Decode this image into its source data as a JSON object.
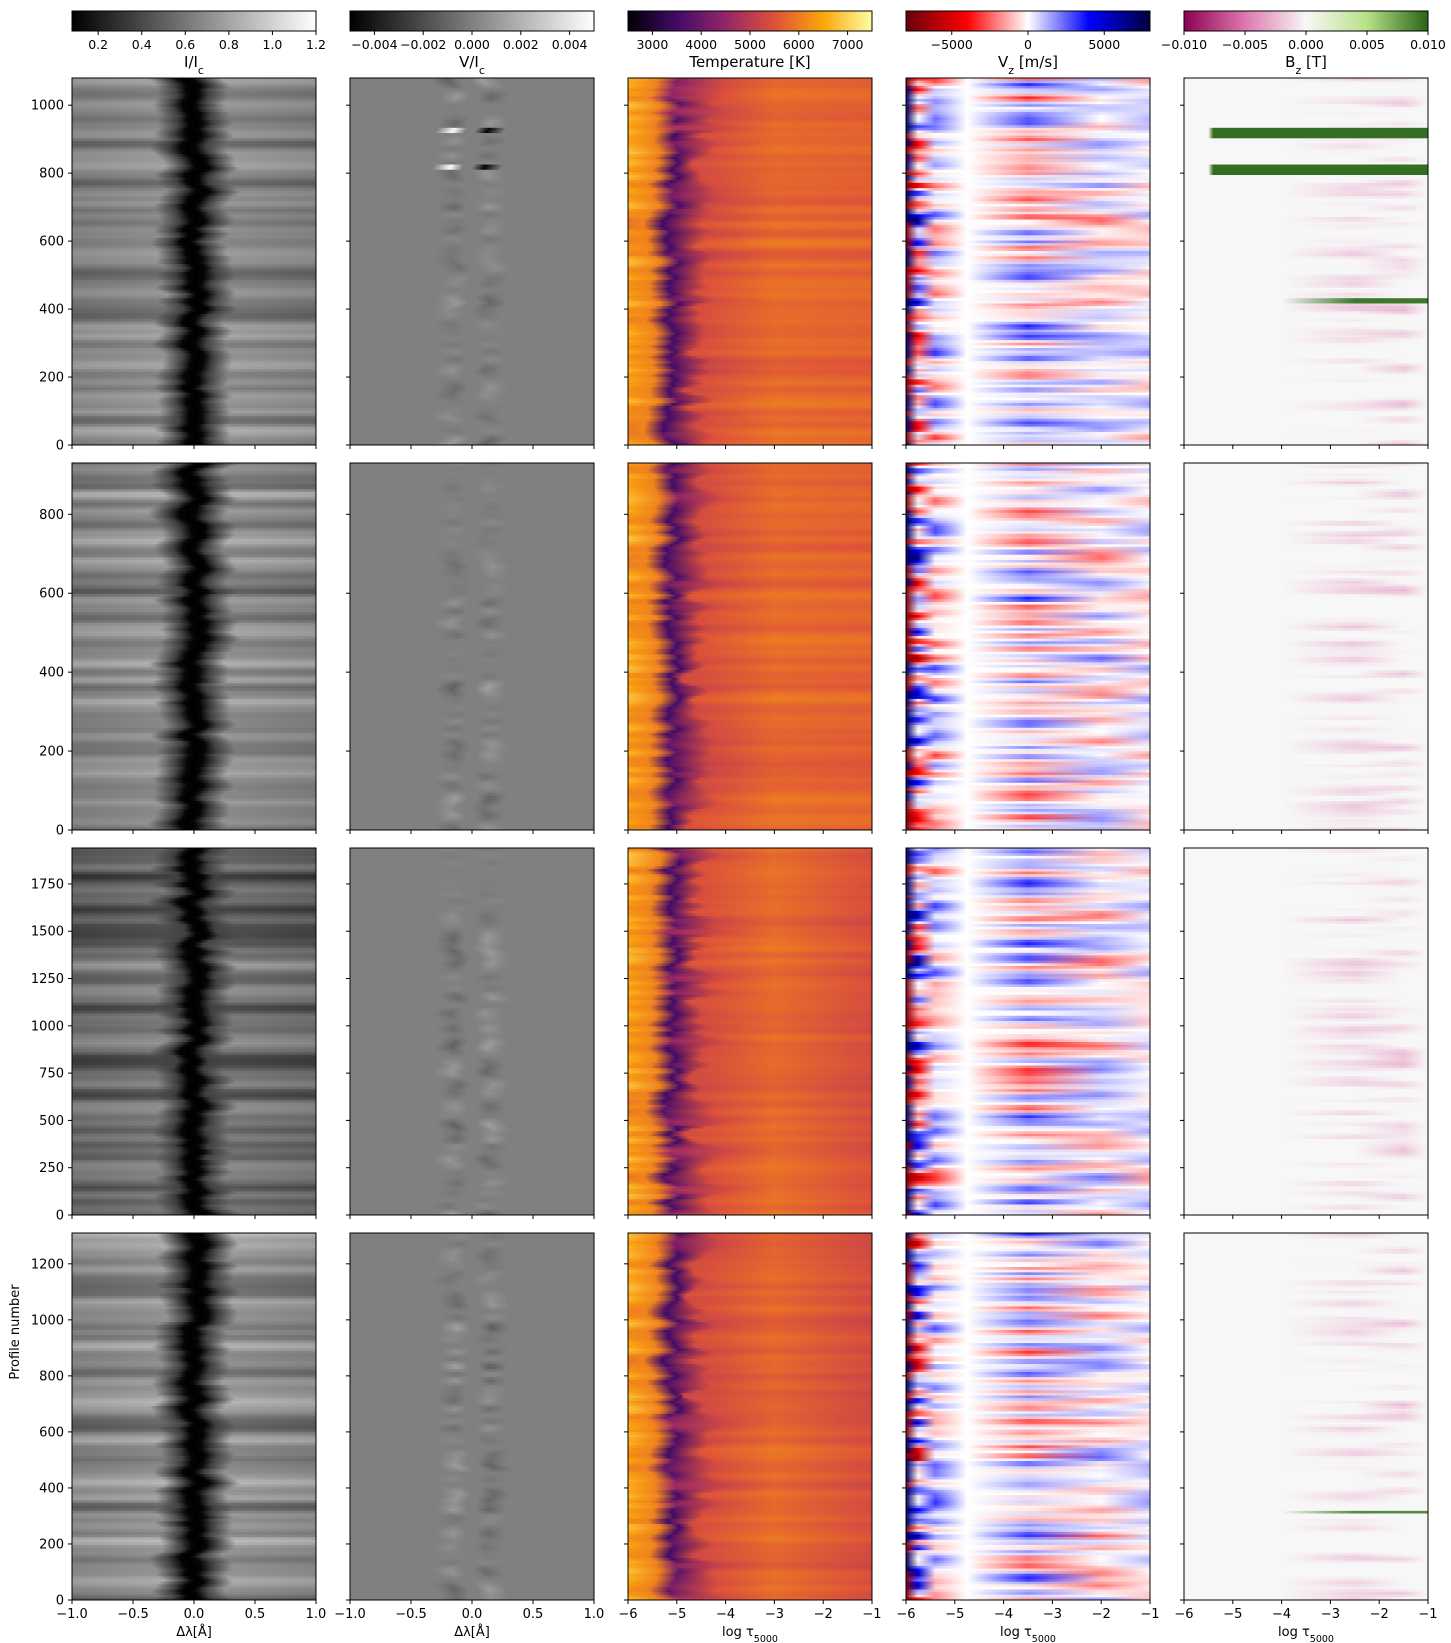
{
  "figure": {
    "ylabel": "Profile number",
    "xlabel_wave": "Δλ[Å]",
    "xlabel_tau": "log τ",
    "xlabel_tau_sub": "5000"
  },
  "colorbars": [
    {
      "label": "I/I",
      "label_sub": "c",
      "ticks": [
        "0.2",
        "0.4",
        "0.6",
        "0.8",
        "1.0",
        "1.2"
      ],
      "tick_values": [
        0.2,
        0.4,
        0.6,
        0.8,
        1.0,
        1.2
      ],
      "range": [
        0.08,
        1.2
      ],
      "cmap": [
        "#000000",
        "#ffffff"
      ]
    },
    {
      "label": "V/I",
      "label_sub": "c",
      "ticks": [
        "−0.004",
        "−0.002",
        "0.000",
        "0.002",
        "0.004"
      ],
      "tick_values": [
        -0.004,
        -0.002,
        0.0,
        0.002,
        0.004
      ],
      "range": [
        -0.005,
        0.005
      ],
      "cmap": [
        "#000000",
        "#ffffff"
      ]
    },
    {
      "label": "Temperature [K]",
      "label_sub": "",
      "ticks": [
        "3000",
        "4000",
        "5000",
        "6000",
        "7000"
      ],
      "tick_values": [
        3000,
        4000,
        5000,
        6000,
        7000
      ],
      "range": [
        2500,
        7500
      ],
      "cmap": [
        "#000004",
        "#420a68",
        "#932667",
        "#dd513a",
        "#fca50a",
        "#fcffa4"
      ]
    },
    {
      "label": "V",
      "label_sub": "z",
      "label_tail": " [m/s]",
      "ticks": [
        "−5000",
        "0",
        "5000"
      ],
      "tick_values": [
        -5000,
        0,
        5000
      ],
      "range": [
        -8000,
        8000
      ],
      "cmap": [
        "#67000d",
        "#ff0000",
        "#ffffff",
        "#0000ff",
        "#00003c"
      ]
    },
    {
      "label": "B",
      "label_sub": "z",
      "label_tail": " [T]",
      "ticks": [
        "−0.010",
        "−0.005",
        "0.000",
        "0.005",
        "0.010"
      ],
      "tick_values": [
        -0.01,
        -0.005,
        0.0,
        0.005,
        0.01
      ],
      "range": [
        -0.01,
        0.01
      ],
      "cmap": [
        "#8e0152",
        "#de77ae",
        "#f7f7f7",
        "#b8e186",
        "#276419"
      ]
    }
  ],
  "chart_data": {
    "type": "heatmap",
    "rows": [
      {
        "y_ticks": [
          0,
          200,
          400,
          600,
          800,
          1000
        ],
        "y_max": 1080
      },
      {
        "y_ticks": [
          0,
          200,
          400,
          600,
          800
        ],
        "y_max": 930
      },
      {
        "y_ticks": [
          0,
          250,
          500,
          750,
          1000,
          1250,
          1500,
          1750
        ],
        "y_max": 1940
      },
      {
        "y_ticks": [
          0,
          200,
          400,
          600,
          800,
          1000,
          1200
        ],
        "y_max": 1310
      }
    ],
    "x_wave": {
      "ticks": [
        "−1.0",
        "−0.5",
        "0.0",
        "0.5",
        "1.0"
      ],
      "values": [
        -1.0,
        -0.5,
        0.0,
        0.5,
        1.0
      ],
      "range": [
        -1.0,
        1.0
      ]
    },
    "x_tau": {
      "ticks": [
        "−6",
        "−5",
        "−4",
        "−3",
        "−2",
        "−1"
      ],
      "values": [
        -6,
        -5,
        -4,
        -3,
        -2,
        -1
      ],
      "range": [
        -6,
        -1
      ]
    }
  }
}
